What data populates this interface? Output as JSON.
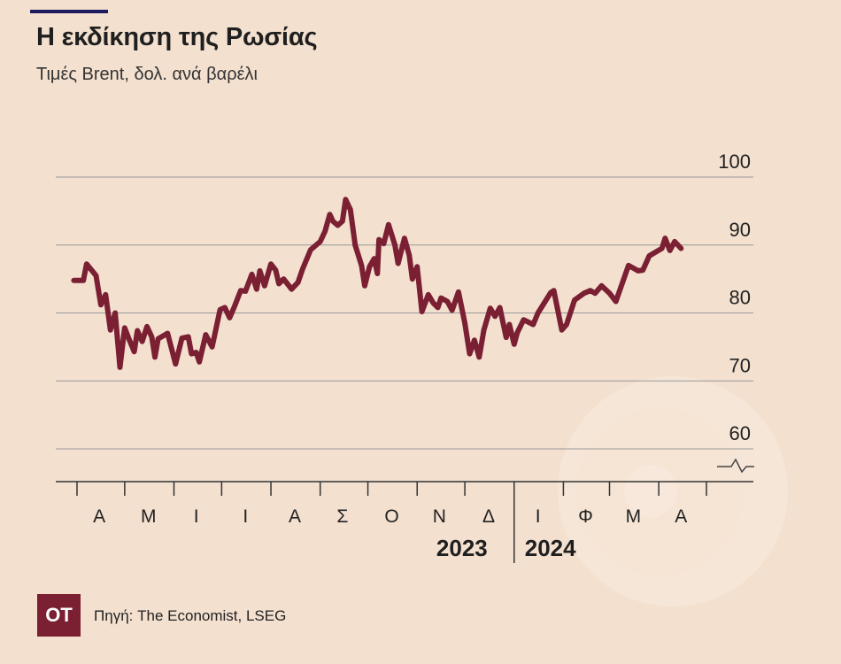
{
  "header": {
    "title": "Η εκδίκηση της Ρωσίας",
    "subtitle": "Τιμές Brent, δολ. ανά βαρέλι"
  },
  "footer": {
    "logo_text": "OT",
    "source": "Πηγή: The Economist, LSEG"
  },
  "colors": {
    "background": "#f3e0cf",
    "line": "#7b1f33",
    "accent_rule": "#1c1c5e",
    "gridline": "#999999"
  },
  "chart_data": {
    "type": "line",
    "title": "Η εκδίκηση της Ρωσίας",
    "subtitle": "Τιμές Brent, δολ. ανά βαρέλι",
    "xlabel": "",
    "ylabel": "",
    "ylim": [
      55,
      100
    ],
    "y_axis_break": true,
    "yticks": [
      60,
      70,
      80,
      90,
      100
    ],
    "y_axis_side": "right",
    "grid": "horizontal",
    "xlim": [
      "2023-03-27",
      "2024-05-06"
    ],
    "month_ticks": [
      {
        "label": "Α",
        "date": "2023-04-15"
      },
      {
        "label": "Μ",
        "date": "2023-05-16"
      },
      {
        "label": "Ι",
        "date": "2023-06-15"
      },
      {
        "label": "Ι",
        "date": "2023-07-16"
      },
      {
        "label": "Α",
        "date": "2023-08-16"
      },
      {
        "label": "Σ",
        "date": "2023-09-15"
      },
      {
        "label": "Ο",
        "date": "2023-10-16"
      },
      {
        "label": "Ν",
        "date": "2023-11-15"
      },
      {
        "label": "Δ",
        "date": "2023-12-16"
      },
      {
        "label": "Ι",
        "date": "2024-01-16"
      },
      {
        "label": "Φ",
        "date": "2024-02-15"
      },
      {
        "label": "Μ",
        "date": "2024-03-16"
      },
      {
        "label": "Α",
        "date": "2024-04-15"
      }
    ],
    "year_labels": [
      {
        "label": "2023",
        "align": "end",
        "date": "2024-01-01"
      },
      {
        "label": "2024",
        "align": "start",
        "date": "2024-01-01"
      }
    ],
    "series": [
      {
        "points": [
          [
            "2023-03-30",
            84.8
          ],
          [
            "2023-04-05",
            84.8
          ],
          [
            "2023-04-07",
            87.2
          ],
          [
            "2023-04-13",
            85.5
          ],
          [
            "2023-04-16",
            81.2
          ],
          [
            "2023-04-19",
            82.7
          ],
          [
            "2023-04-22",
            77.5
          ],
          [
            "2023-04-25",
            80.0
          ],
          [
            "2023-04-28",
            72.0
          ],
          [
            "2023-05-01",
            77.8
          ],
          [
            "2023-05-04",
            76.0
          ],
          [
            "2023-05-07",
            74.3
          ],
          [
            "2023-05-09",
            77.4
          ],
          [
            "2023-05-12",
            75.8
          ],
          [
            "2023-05-15",
            78.0
          ],
          [
            "2023-05-18",
            76.5
          ],
          [
            "2023-05-20",
            73.5
          ],
          [
            "2023-05-22",
            76.2
          ],
          [
            "2023-05-28",
            77.0
          ],
          [
            "2023-06-02",
            72.5
          ],
          [
            "2023-06-06",
            76.3
          ],
          [
            "2023-06-10",
            76.5
          ],
          [
            "2023-06-12",
            74.0
          ],
          [
            "2023-06-15",
            74.2
          ],
          [
            "2023-06-17",
            72.8
          ],
          [
            "2023-06-21",
            76.8
          ],
          [
            "2023-06-25",
            75.0
          ],
          [
            "2023-06-30",
            80.5
          ],
          [
            "2023-07-03",
            80.8
          ],
          [
            "2023-07-06",
            79.3
          ],
          [
            "2023-07-09",
            80.9
          ],
          [
            "2023-07-13",
            83.3
          ],
          [
            "2023-07-16",
            83.2
          ],
          [
            "2023-07-20",
            85.7
          ],
          [
            "2023-07-23",
            83.5
          ],
          [
            "2023-07-25",
            86.2
          ],
          [
            "2023-07-28",
            84.0
          ],
          [
            "2023-08-01",
            87.2
          ],
          [
            "2023-08-04",
            86.3
          ],
          [
            "2023-08-06",
            84.3
          ],
          [
            "2023-08-09",
            85.0
          ],
          [
            "2023-08-14",
            83.5
          ],
          [
            "2023-08-18",
            84.5
          ],
          [
            "2023-08-21",
            86.5
          ],
          [
            "2023-08-26",
            89.3
          ],
          [
            "2023-09-01",
            90.5
          ],
          [
            "2023-09-04",
            92.0
          ],
          [
            "2023-09-07",
            94.5
          ],
          [
            "2023-09-09",
            93.5
          ],
          [
            "2023-09-12",
            92.9
          ],
          [
            "2023-09-15",
            93.5
          ],
          [
            "2023-09-17",
            96.7
          ],
          [
            "2023-09-20",
            95.2
          ],
          [
            "2023-09-23",
            90.0
          ],
          [
            "2023-09-27",
            87.0
          ],
          [
            "2023-09-29",
            84.0
          ],
          [
            "2023-10-02",
            86.8
          ],
          [
            "2023-10-05",
            88.0
          ],
          [
            "2023-10-07",
            85.8
          ],
          [
            "2023-10-08",
            90.8
          ],
          [
            "2023-10-11",
            90.2
          ],
          [
            "2023-10-14",
            93.0
          ],
          [
            "2023-10-18",
            90.0
          ],
          [
            "2023-10-20",
            87.3
          ],
          [
            "2023-10-24",
            91.0
          ],
          [
            "2023-10-27",
            88.5
          ],
          [
            "2023-10-29",
            85.0
          ],
          [
            "2023-11-01",
            86.8
          ],
          [
            "2023-11-04",
            80.2
          ],
          [
            "2023-11-08",
            82.7
          ],
          [
            "2023-11-11",
            81.5
          ],
          [
            "2023-11-14",
            80.8
          ],
          [
            "2023-11-16",
            82.2
          ],
          [
            "2023-11-20",
            81.7
          ],
          [
            "2023-11-23",
            80.4
          ],
          [
            "2023-11-27",
            83.1
          ],
          [
            "2023-12-01",
            78.5
          ],
          [
            "2023-12-04",
            74.0
          ],
          [
            "2023-12-07",
            76.0
          ],
          [
            "2023-12-10",
            73.5
          ],
          [
            "2023-12-13",
            77.5
          ],
          [
            "2023-12-17",
            80.7
          ],
          [
            "2023-12-20",
            79.5
          ],
          [
            "2023-12-23",
            80.8
          ],
          [
            "2023-12-27",
            76.4
          ],
          [
            "2023-12-29",
            78.3
          ],
          [
            "2024-01-01",
            75.4
          ],
          [
            "2024-01-03",
            77.1
          ],
          [
            "2024-01-07",
            79.0
          ],
          [
            "2024-01-13",
            78.3
          ],
          [
            "2024-01-16",
            80.0
          ],
          [
            "2024-01-24",
            83.0
          ],
          [
            "2024-01-26",
            83.3
          ],
          [
            "2024-01-31",
            77.5
          ],
          [
            "2024-02-03",
            78.3
          ],
          [
            "2024-02-08",
            81.9
          ],
          [
            "2024-02-14",
            82.9
          ],
          [
            "2024-02-18",
            83.3
          ],
          [
            "2024-02-21",
            82.9
          ],
          [
            "2024-02-25",
            84.0
          ],
          [
            "2024-03-01",
            82.9
          ],
          [
            "2024-03-05",
            81.7
          ],
          [
            "2024-03-13",
            87.0
          ],
          [
            "2024-03-19",
            86.2
          ],
          [
            "2024-03-22",
            86.3
          ],
          [
            "2024-03-26",
            88.4
          ],
          [
            "2024-04-03",
            89.5
          ],
          [
            "2024-04-05",
            91.0
          ],
          [
            "2024-04-08",
            89.2
          ],
          [
            "2024-04-11",
            90.5
          ],
          [
            "2024-04-15",
            89.5
          ]
        ]
      }
    ]
  }
}
